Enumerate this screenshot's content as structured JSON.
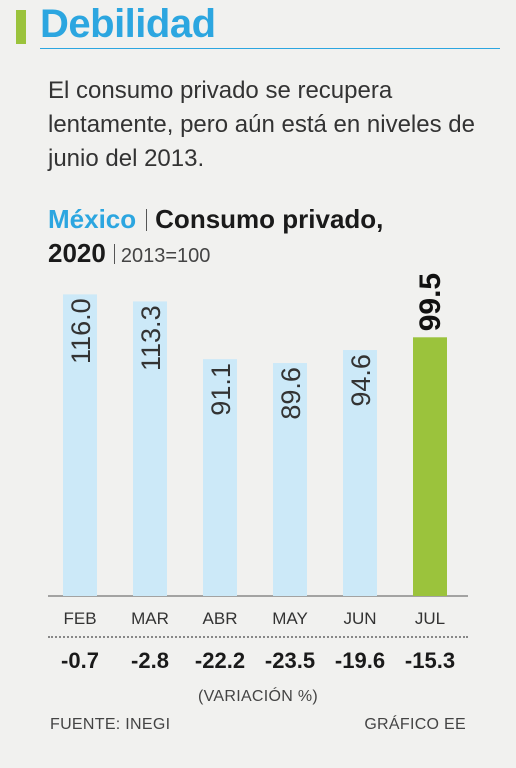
{
  "header": {
    "title": "Debilidad",
    "subtitle": "El consumo privado se recupera lentamente, pero aún está en niveles de junio del 2013."
  },
  "chart_heading": {
    "country": "México",
    "title_a": "Consumo privado,",
    "title_b": "2020",
    "base": "2013=100"
  },
  "chart_data": {
    "type": "bar",
    "categories": [
      "FEB",
      "MAR",
      "ABR",
      "MAY",
      "JUN",
      "JUL"
    ],
    "values": [
      116.0,
      113.3,
      91.1,
      89.6,
      94.6,
      99.5
    ],
    "value_labels": [
      "116.0",
      "113.3",
      "91.1",
      "89.6",
      "94.6",
      "99.5"
    ],
    "highlight_index": 5,
    "colors": {
      "bar": "#cce9f8",
      "highlight": "#9bc33c"
    },
    "variation": {
      "values": [
        -0.7,
        -2.8,
        -22.2,
        -23.5,
        -19.6,
        -15.3
      ],
      "labels": [
        "-0.7",
        "-2.8",
        "-22.2",
        "-23.5",
        "-19.6",
        "-15.3"
      ],
      "label": "(VARIACIÓN %)"
    }
  },
  "footer": {
    "source": "FUENTE: INEGI",
    "credit": "GRÁFICO EE"
  }
}
